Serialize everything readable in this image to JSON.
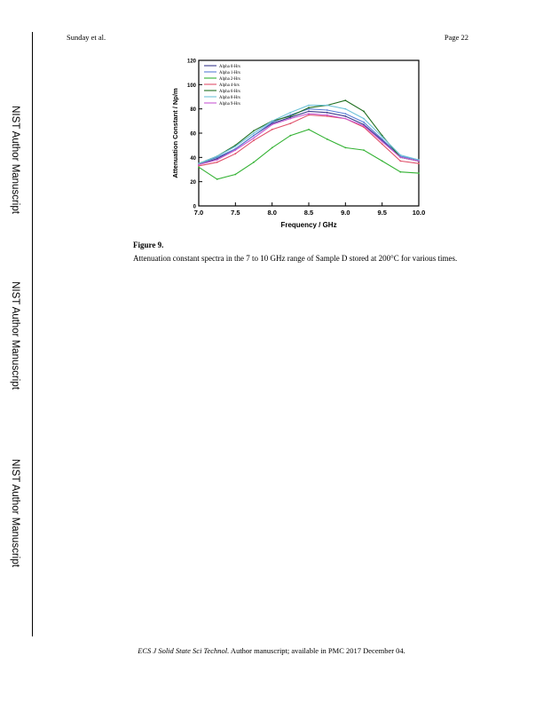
{
  "header": {
    "left": "Sunday et al.",
    "right": "Page 22"
  },
  "side_labels": [
    "NIST Author Manuscript",
    "NIST Author Manuscript",
    "NIST Author Manuscript"
  ],
  "figure": {
    "title": "Figure 9.",
    "caption": "Attenuation constant spectra in the 7 to 10 GHz range of Sample D stored at 200°C for various times."
  },
  "footer": {
    "journal": "ECS J Solid State Sci Technol.",
    "text": " Author manuscript; available in PMC 2017 December 04."
  },
  "chart_data": {
    "type": "line",
    "xlabel": "Frequency / GHz",
    "ylabel": "Attenuation Constant / Np/m",
    "xlim": [
      7.0,
      10.0
    ],
    "ylim": [
      0,
      120
    ],
    "xticks": [
      "7.0",
      "7.5",
      "8.0",
      "8.5",
      "9.0",
      "9.5",
      "10.0"
    ],
    "yticks": [
      "0",
      "20",
      "40",
      "60",
      "80",
      "100",
      "120"
    ],
    "legend_position": "top-left",
    "x": [
      7.0,
      7.25,
      7.5,
      7.75,
      8.0,
      8.25,
      8.5,
      8.75,
      9.0,
      9.25,
      9.5,
      9.75,
      10.0
    ],
    "series": [
      {
        "name": "Alpha 0-Hrs",
        "color": "#3a3a8c",
        "values": [
          34,
          39,
          47,
          58,
          68,
          73,
          78,
          77,
          74,
          67,
          54,
          40,
          37
        ]
      },
      {
        "name": "Alpha 1-Hrs",
        "color": "#5a7fd6",
        "values": [
          35,
          40,
          47,
          58,
          69,
          75,
          80,
          79,
          76,
          69,
          55,
          41,
          38
        ]
      },
      {
        "name": "Alpha 2-Hrs",
        "color": "#33b233",
        "values": [
          32,
          22,
          26,
          36,
          48,
          58,
          63,
          55,
          48,
          46,
          37,
          28,
          27
        ]
      },
      {
        "name": "Alpha 4-hrs",
        "color": "#e0506a",
        "values": [
          33,
          36,
          43,
          54,
          63,
          68,
          75,
          74,
          72,
          65,
          51,
          37,
          35
        ]
      },
      {
        "name": "Alpha 6-Hrs",
        "color": "#1f6e1f",
        "values": [
          35,
          41,
          50,
          62,
          70,
          74,
          81,
          83,
          87,
          78,
          58,
          40,
          37
        ]
      },
      {
        "name": "Alpha 8-Hrs",
        "color": "#6fc3d9",
        "values": [
          35,
          41,
          49,
          60,
          70,
          77,
          83,
          83,
          80,
          72,
          57,
          42,
          38
        ]
      },
      {
        "name": "Alpha 9-Hrs",
        "color": "#c85ad3",
        "values": [
          34,
          38,
          46,
          56,
          67,
          72,
          76,
          75,
          72,
          66,
          53,
          40,
          37
        ]
      }
    ]
  }
}
